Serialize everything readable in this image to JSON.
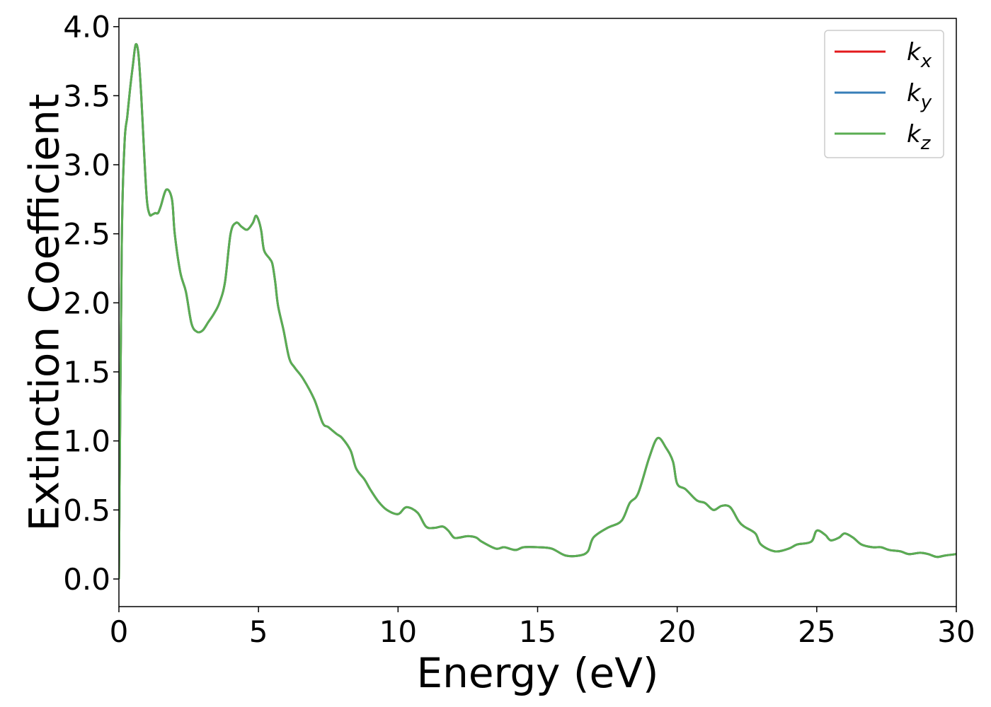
{
  "chart_data": {
    "type": "line",
    "title": "",
    "xlabel": "Energy (eV)",
    "ylabel": "Extinction Coefficient",
    "xlim": [
      0,
      30
    ],
    "ylim": [
      -0.2,
      4.06
    ],
    "xticks": [
      0,
      5,
      10,
      15,
      20,
      25,
      30
    ],
    "yticks": [
      0.0,
      0.5,
      1.0,
      1.5,
      2.0,
      2.5,
      3.0,
      3.5,
      4.0
    ],
    "xtick_labels": [
      "0",
      "5",
      "10",
      "15",
      "20",
      "25",
      "30"
    ],
    "ytick_labels": [
      "0.0",
      "0.5",
      "1.0",
      "1.5",
      "2.0",
      "2.5",
      "3.0",
      "3.5",
      "4.0"
    ],
    "grid": false,
    "legend_position": "top-right",
    "x": [
      0.0,
      0.1,
      0.2,
      0.3,
      0.4,
      0.5,
      0.6,
      0.7,
      0.8,
      0.9,
      1.0,
      1.1,
      1.2,
      1.3,
      1.4,
      1.5,
      1.7,
      1.9,
      2.0,
      2.2,
      2.4,
      2.6,
      2.8,
      3.0,
      3.2,
      3.4,
      3.6,
      3.8,
      4.0,
      4.2,
      4.4,
      4.6,
      4.8,
      4.9,
      5.0,
      5.1,
      5.2,
      5.4,
      5.5,
      5.6,
      5.7,
      5.9,
      6.1,
      6.3,
      6.6,
      7.0,
      7.3,
      7.5,
      7.8,
      8.0,
      8.3,
      8.5,
      8.8,
      9.0,
      9.3,
      9.6,
      10.0,
      10.3,
      10.7,
      11.0,
      11.3,
      11.6,
      11.8,
      12.0,
      12.2,
      12.5,
      12.8,
      13.0,
      13.5,
      13.8,
      14.2,
      14.5,
      15.0,
      15.5,
      16.0,
      16.5,
      16.8,
      17.0,
      17.5,
      18.0,
      18.3,
      18.6,
      19.0,
      19.3,
      19.6,
      19.85,
      20.0,
      20.3,
      20.7,
      21.0,
      21.3,
      21.6,
      21.9,
      22.2,
      22.4,
      22.8,
      23.0,
      23.5,
      24.0,
      24.3,
      24.8,
      25.0,
      25.3,
      25.5,
      25.8,
      26.0,
      26.3,
      26.6,
      27.0,
      27.3,
      27.6,
      28.0,
      28.3,
      28.7,
      29.0,
      29.3,
      29.6,
      30.0
    ],
    "series": [
      {
        "name": "k_x",
        "color": "#e31a1c",
        "values": [
          0.0,
          2.4,
          3.15,
          3.35,
          3.55,
          3.72,
          3.87,
          3.8,
          3.5,
          3.1,
          2.75,
          2.64,
          2.64,
          2.65,
          2.65,
          2.7,
          2.82,
          2.75,
          2.5,
          2.22,
          2.08,
          1.85,
          1.79,
          1.8,
          1.86,
          1.92,
          2.0,
          2.15,
          2.5,
          2.58,
          2.55,
          2.53,
          2.58,
          2.63,
          2.6,
          2.52,
          2.38,
          2.32,
          2.28,
          2.15,
          1.98,
          1.8,
          1.6,
          1.53,
          1.45,
          1.3,
          1.13,
          1.1,
          1.05,
          1.02,
          0.93,
          0.8,
          0.72,
          0.65,
          0.56,
          0.5,
          0.47,
          0.52,
          0.48,
          0.38,
          0.37,
          0.38,
          0.35,
          0.3,
          0.3,
          0.31,
          0.3,
          0.27,
          0.22,
          0.23,
          0.21,
          0.23,
          0.23,
          0.22,
          0.17,
          0.17,
          0.2,
          0.3,
          0.37,
          0.42,
          0.55,
          0.62,
          0.88,
          1.02,
          0.95,
          0.85,
          0.69,
          0.65,
          0.57,
          0.55,
          0.5,
          0.53,
          0.52,
          0.42,
          0.38,
          0.33,
          0.25,
          0.2,
          0.22,
          0.25,
          0.27,
          0.35,
          0.32,
          0.28,
          0.3,
          0.33,
          0.3,
          0.25,
          0.23,
          0.23,
          0.21,
          0.2,
          0.18,
          0.19,
          0.18,
          0.16,
          0.17,
          0.18
        ]
      },
      {
        "name": "k_y",
        "color": "#377eb8",
        "values": [
          0.0,
          2.4,
          3.15,
          3.35,
          3.55,
          3.72,
          3.87,
          3.8,
          3.5,
          3.1,
          2.75,
          2.64,
          2.64,
          2.65,
          2.65,
          2.7,
          2.82,
          2.75,
          2.5,
          2.22,
          2.08,
          1.85,
          1.79,
          1.8,
          1.86,
          1.92,
          2.0,
          2.15,
          2.5,
          2.58,
          2.55,
          2.53,
          2.58,
          2.63,
          2.6,
          2.52,
          2.38,
          2.32,
          2.28,
          2.15,
          1.98,
          1.8,
          1.6,
          1.53,
          1.45,
          1.3,
          1.13,
          1.1,
          1.05,
          1.02,
          0.93,
          0.8,
          0.72,
          0.65,
          0.56,
          0.5,
          0.47,
          0.52,
          0.48,
          0.38,
          0.37,
          0.38,
          0.35,
          0.3,
          0.3,
          0.31,
          0.3,
          0.27,
          0.22,
          0.23,
          0.21,
          0.23,
          0.23,
          0.22,
          0.17,
          0.17,
          0.2,
          0.3,
          0.37,
          0.42,
          0.55,
          0.62,
          0.88,
          1.02,
          0.95,
          0.85,
          0.69,
          0.65,
          0.57,
          0.55,
          0.5,
          0.53,
          0.52,
          0.42,
          0.38,
          0.33,
          0.25,
          0.2,
          0.22,
          0.25,
          0.27,
          0.35,
          0.32,
          0.28,
          0.3,
          0.33,
          0.3,
          0.25,
          0.23,
          0.23,
          0.21,
          0.2,
          0.18,
          0.19,
          0.18,
          0.16,
          0.17,
          0.18
        ]
      },
      {
        "name": "k_z",
        "color": "#5aad52",
        "values": [
          0.0,
          2.4,
          3.15,
          3.35,
          3.55,
          3.72,
          3.87,
          3.8,
          3.5,
          3.1,
          2.75,
          2.64,
          2.64,
          2.65,
          2.65,
          2.7,
          2.82,
          2.75,
          2.5,
          2.22,
          2.08,
          1.85,
          1.79,
          1.8,
          1.86,
          1.92,
          2.0,
          2.15,
          2.5,
          2.58,
          2.55,
          2.53,
          2.58,
          2.63,
          2.6,
          2.52,
          2.38,
          2.32,
          2.28,
          2.15,
          1.98,
          1.8,
          1.6,
          1.53,
          1.45,
          1.3,
          1.13,
          1.1,
          1.05,
          1.02,
          0.93,
          0.8,
          0.72,
          0.65,
          0.56,
          0.5,
          0.47,
          0.52,
          0.48,
          0.38,
          0.37,
          0.38,
          0.35,
          0.3,
          0.3,
          0.31,
          0.3,
          0.27,
          0.22,
          0.23,
          0.21,
          0.23,
          0.23,
          0.22,
          0.17,
          0.17,
          0.2,
          0.3,
          0.37,
          0.42,
          0.55,
          0.62,
          0.88,
          1.02,
          0.95,
          0.85,
          0.69,
          0.65,
          0.57,
          0.55,
          0.5,
          0.53,
          0.52,
          0.42,
          0.38,
          0.33,
          0.25,
          0.2,
          0.22,
          0.25,
          0.27,
          0.35,
          0.32,
          0.28,
          0.3,
          0.33,
          0.3,
          0.25,
          0.23,
          0.23,
          0.21,
          0.2,
          0.18,
          0.19,
          0.18,
          0.16,
          0.17,
          0.18
        ]
      }
    ],
    "legend": [
      {
        "base": "k",
        "sub": "x",
        "color": "#e31a1c"
      },
      {
        "base": "k",
        "sub": "y",
        "color": "#377eb8"
      },
      {
        "base": "k",
        "sub": "z",
        "color": "#5aad52"
      }
    ]
  }
}
